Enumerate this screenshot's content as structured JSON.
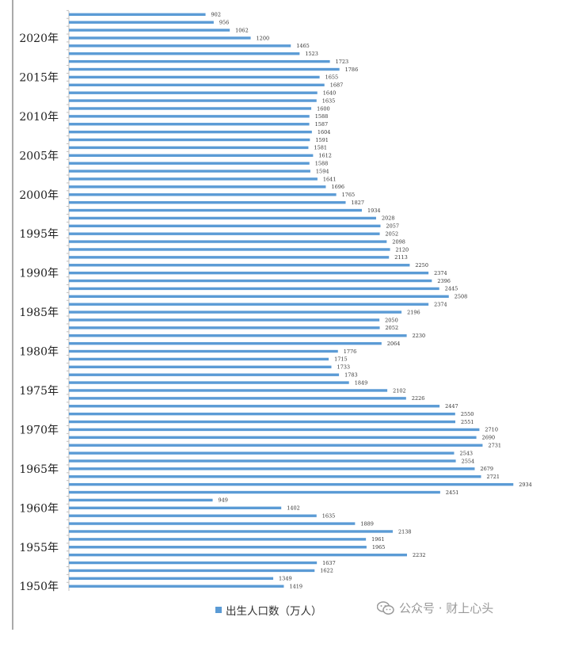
{
  "chart_data": {
    "type": "bar",
    "orientation": "horizontal",
    "categories": [
      1950,
      1951,
      1952,
      1953,
      1954,
      1955,
      1956,
      1957,
      1958,
      1959,
      1960,
      1961,
      1962,
      1963,
      1964,
      1965,
      1966,
      1967,
      1968,
      1969,
      1970,
      1971,
      1972,
      1973,
      1974,
      1975,
      1976,
      1977,
      1978,
      1979,
      1980,
      1981,
      1982,
      1983,
      1984,
      1985,
      1986,
      1987,
      1988,
      1989,
      1990,
      1991,
      1992,
      1993,
      1994,
      1995,
      1996,
      1997,
      1998,
      1999,
      2000,
      2001,
      2002,
      2003,
      2004,
      2005,
      2006,
      2007,
      2008,
      2009,
      2010,
      2011,
      2012,
      2013,
      2014,
      2015,
      2016,
      2017,
      2018,
      2019,
      2020,
      2021,
      2022,
      2023
    ],
    "series": [
      {
        "name": "出生人口数（万人）",
        "values": [
          1419,
          1349,
          1622,
          1637,
          2232,
          1965,
          1961,
          2138,
          1889,
          1635,
          1402,
          949,
          2451,
          2934,
          2721,
          2679,
          2554,
          2543,
          2731,
          2690,
          2710,
          2551,
          2550,
          2447,
          2226,
          2102,
          1849,
          1783,
          1733,
          1715,
          1776,
          2064,
          2230,
          2052,
          2050,
          2196,
          2374,
          2508,
          2445,
          2396,
          2374,
          2250,
          2113,
          2120,
          2098,
          2052,
          2057,
          2028,
          1934,
          1827,
          1765,
          1696,
          1641,
          1594,
          1588,
          1612,
          1581,
          1591,
          1604,
          1587,
          1588,
          1600,
          1635,
          1640,
          1687,
          1655,
          1786,
          1723,
          1523,
          1465,
          1200,
          1062,
          956,
          902
        ],
        "color": "#5b9bd5"
      }
    ],
    "y_tick_labels": [
      "1950年",
      "1955年",
      "1960年",
      "1965年",
      "1970年",
      "1975年",
      "1980年",
      "1985年",
      "1990年",
      "1995年",
      "2000年",
      "2005年",
      "2010年",
      "2015年",
      "2020年"
    ],
    "xlim": [
      0,
      3100
    ],
    "legend": "bottom"
  },
  "watermark": {
    "icon": "wechat-icon",
    "text": "公众号 · 财上心头"
  }
}
